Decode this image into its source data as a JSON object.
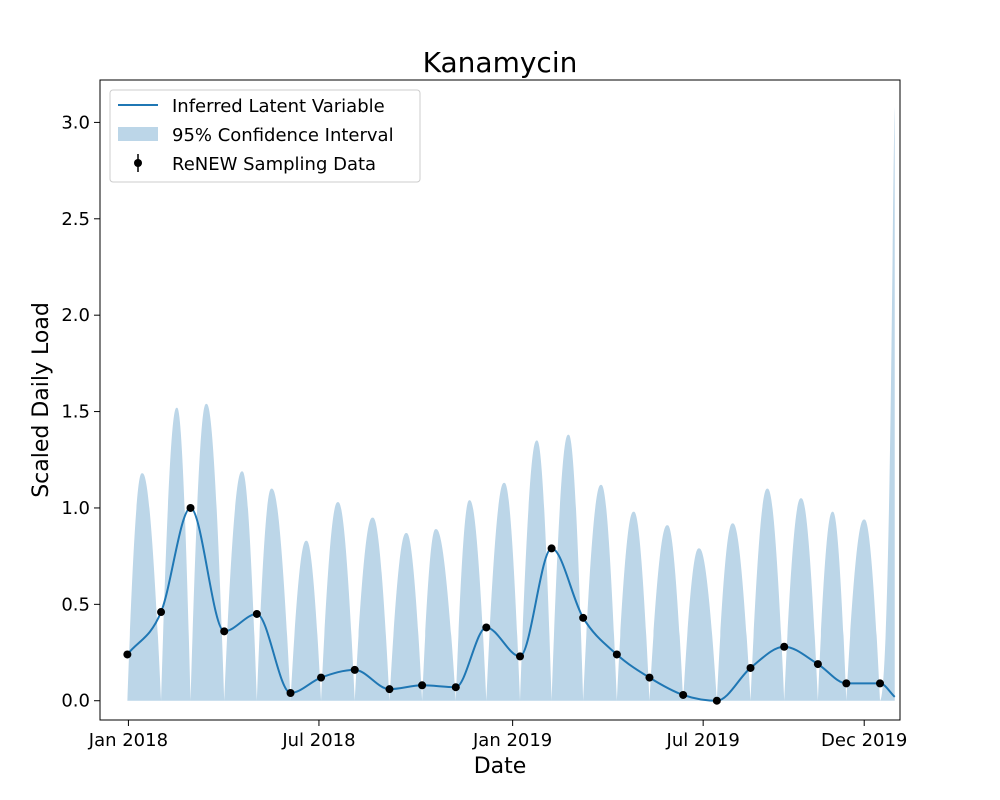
{
  "chart_data": {
    "type": "line",
    "title": "Kanamycin",
    "xlabel": "Date",
    "ylabel": "Scaled Daily Load",
    "ylim": [
      -0.1,
      3.22
    ],
    "xlim": [
      "2017-12-05",
      "2020-01-04"
    ],
    "grid": false,
    "legend_position": "top-left",
    "x_ticks": [
      {
        "date": "2018-01-01",
        "label": "Jan 2018"
      },
      {
        "date": "2018-07-01",
        "label": "Jul 2018"
      },
      {
        "date": "2019-01-01",
        "label": "Jan 2019"
      },
      {
        "date": "2019-07-01",
        "label": "Jul 2019"
      },
      {
        "date": "2019-12-01",
        "label": "Dec 2019"
      }
    ],
    "y_ticks": [
      0.0,
      0.5,
      1.0,
      1.5,
      2.0,
      2.5,
      3.0
    ],
    "y_tick_labels": [
      "0.0",
      "0.5",
      "1.0",
      "1.5",
      "2.0",
      "2.5",
      "3.0"
    ],
    "legend": {
      "latent": "Inferred Latent Variable",
      "ci": "95% Confidence Interval",
      "sampling": "ReNEW Sampling Data"
    },
    "colors": {
      "line": "#1f77b4",
      "band": "#bcd6e8",
      "points": "#000000"
    },
    "sampling_data": [
      {
        "date": "2017-12-31",
        "value": 0.24
      },
      {
        "date": "2018-02-01",
        "value": 0.46
      },
      {
        "date": "2018-03-01",
        "value": 1.0
      },
      {
        "date": "2018-04-02",
        "value": 0.36
      },
      {
        "date": "2018-05-03",
        "value": 0.45
      },
      {
        "date": "2018-06-04",
        "value": 0.04
      },
      {
        "date": "2018-07-03",
        "value": 0.12
      },
      {
        "date": "2018-08-04",
        "value": 0.16
      },
      {
        "date": "2018-09-06",
        "value": 0.06
      },
      {
        "date": "2018-10-07",
        "value": 0.08
      },
      {
        "date": "2018-11-08",
        "value": 0.07
      },
      {
        "date": "2018-12-07",
        "value": 0.38
      },
      {
        "date": "2019-01-08",
        "value": 0.23
      },
      {
        "date": "2019-02-07",
        "value": 0.79
      },
      {
        "date": "2019-03-09",
        "value": 0.43
      },
      {
        "date": "2019-04-10",
        "value": 0.24
      },
      {
        "date": "2019-05-11",
        "value": 0.12
      },
      {
        "date": "2019-06-12",
        "value": 0.03
      },
      {
        "date": "2019-07-14",
        "value": 0.0
      },
      {
        "date": "2019-08-15",
        "value": 0.17
      },
      {
        "date": "2019-09-16",
        "value": 0.28
      },
      {
        "date": "2019-10-18",
        "value": 0.19
      },
      {
        "date": "2019-11-14",
        "value": 0.09
      },
      {
        "date": "2019-12-16",
        "value": 0.09
      }
    ],
    "latent_end": {
      "date": "2019-12-30",
      "value": 0.02
    },
    "ci_upper_peaks": [
      {
        "date": "2018-01-14",
        "value": 1.18
      },
      {
        "date": "2018-02-16",
        "value": 1.52
      },
      {
        "date": "2018-03-16",
        "value": 1.54
      },
      {
        "date": "2018-04-19",
        "value": 1.19
      },
      {
        "date": "2018-05-17",
        "value": 1.1
      },
      {
        "date": "2018-06-19",
        "value": 0.83
      },
      {
        "date": "2018-07-19",
        "value": 1.03
      },
      {
        "date": "2018-08-21",
        "value": 0.95
      },
      {
        "date": "2018-09-22",
        "value": 0.87
      },
      {
        "date": "2018-10-20",
        "value": 0.89
      },
      {
        "date": "2018-11-21",
        "value": 1.04
      },
      {
        "date": "2018-12-24",
        "value": 1.13
      },
      {
        "date": "2019-01-24",
        "value": 1.35
      },
      {
        "date": "2019-02-23",
        "value": 1.38
      },
      {
        "date": "2019-03-26",
        "value": 1.12
      },
      {
        "date": "2019-04-26",
        "value": 0.98
      },
      {
        "date": "2019-05-28",
        "value": 0.91
      },
      {
        "date": "2019-06-27",
        "value": 0.79
      },
      {
        "date": "2019-07-29",
        "value": 0.92
      },
      {
        "date": "2019-08-31",
        "value": 1.1
      },
      {
        "date": "2019-10-02",
        "value": 1.05
      },
      {
        "date": "2019-11-01",
        "value": 0.98
      },
      {
        "date": "2019-12-01",
        "value": 0.94
      },
      {
        "date": "2019-12-30",
        "value": 3.08
      }
    ]
  }
}
